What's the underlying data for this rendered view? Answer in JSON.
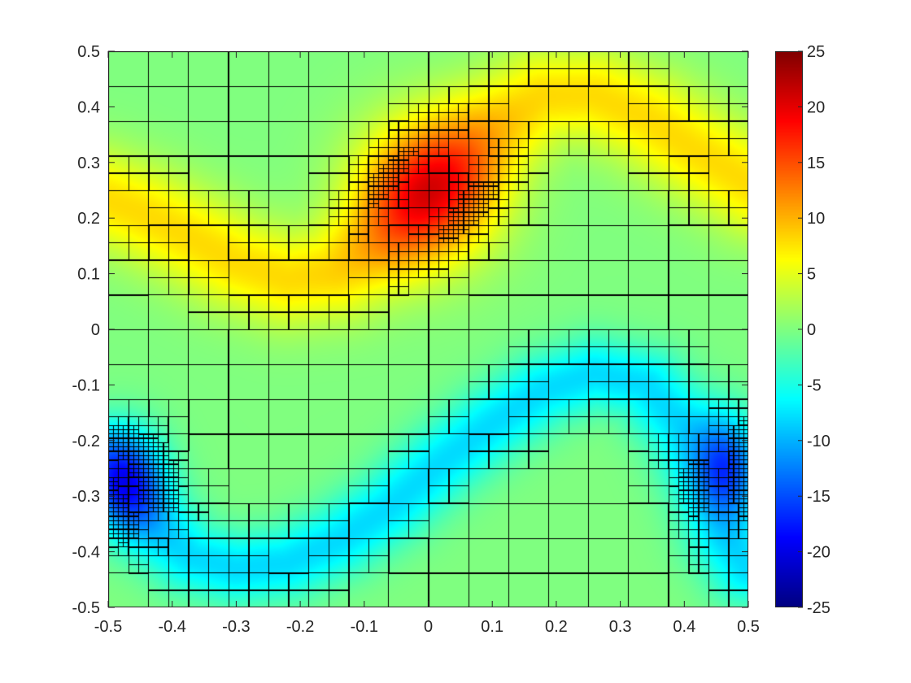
{
  "chart_data": {
    "type": "heatmap",
    "title": "",
    "xlabel": "",
    "ylabel": "",
    "xlim": [
      -0.5,
      0.5
    ],
    "ylim": [
      -0.5,
      0.5
    ],
    "x_ticks": [
      "-0.5",
      "-0.4",
      "-0.3",
      "-0.2",
      "-0.1",
      "0",
      "0.1",
      "0.2",
      "0.3",
      "0.4",
      "0.5"
    ],
    "y_ticks": [
      "0.5",
      "0.4",
      "0.3",
      "0.2",
      "0.1",
      "0",
      "-0.1",
      "-0.2",
      "-0.3",
      "-0.4",
      "-0.5"
    ],
    "colormap": "jet",
    "clim": [
      -25,
      25
    ],
    "colorbar_ticks": [
      "25",
      "20",
      "15",
      "10",
      "5",
      "0",
      "-5",
      "-10",
      "-15",
      "-20",
      "-25"
    ],
    "colorbar_location": "right",
    "grid_overlay": "adaptive quadtree mesh",
    "features": [
      {
        "sign": "positive",
        "peak_value": 20,
        "center": [
          0.0,
          0.25
        ],
        "description": "elongated band from (-0.5, 0.25) through (0.0, 0.25) to (0.5, 0.25)"
      },
      {
        "sign": "negative",
        "peak_value": -20,
        "center": [
          -0.47,
          -0.27
        ],
        "description": "band from (-0.5, -0.27) dipping to (-0.25, -0.42), rising through (0.0, -0.22) to (0.25, -0.08)"
      },
      {
        "sign": "negative",
        "peak_value": -20,
        "center": [
          0.47,
          -0.24
        ],
        "description": "lobe near right edge, curving from (0.35, -0.1) down to (0.45, -0.4)"
      }
    ],
    "colors": {
      "background_mid": "#80ff80",
      "max": "#800000",
      "min": "#000080",
      "mesh_line": "#000000"
    }
  }
}
